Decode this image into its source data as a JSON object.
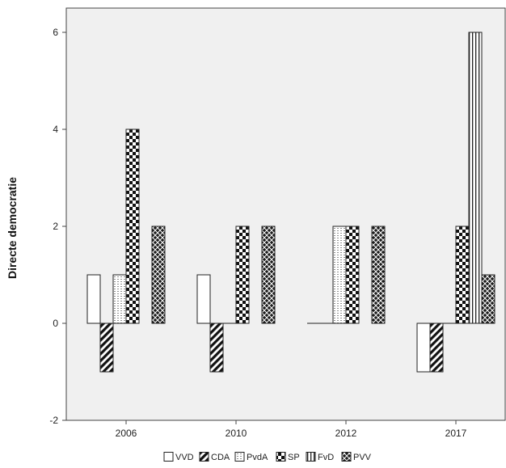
{
  "chart_data": {
    "type": "bar",
    "title": "",
    "xlabel": "",
    "ylabel": "Directe democratie",
    "categories": [
      "2006",
      "2010",
      "2012",
      "2017"
    ],
    "ylim": [
      -2,
      6.5
    ],
    "yticks": [
      -2,
      0,
      2,
      4,
      6
    ],
    "grid": false,
    "legend_position": "bottom",
    "series": [
      {
        "name": "VVD",
        "pattern": "plain",
        "values": [
          1,
          1,
          0,
          -1
        ]
      },
      {
        "name": "CDA",
        "pattern": "diagonal",
        "values": [
          -1,
          -1,
          0,
          -1
        ]
      },
      {
        "name": "PvdA",
        "pattern": "dotted",
        "values": [
          1,
          0,
          2,
          0
        ]
      },
      {
        "name": "SP",
        "pattern": "checker",
        "values": [
          4,
          2,
          2,
          2
        ]
      },
      {
        "name": "FvD",
        "pattern": "vertical",
        "values": [
          null,
          null,
          null,
          6
        ]
      },
      {
        "name": "PVV",
        "pattern": "crosshatch",
        "values": [
          2,
          2,
          2,
          1
        ]
      }
    ]
  }
}
